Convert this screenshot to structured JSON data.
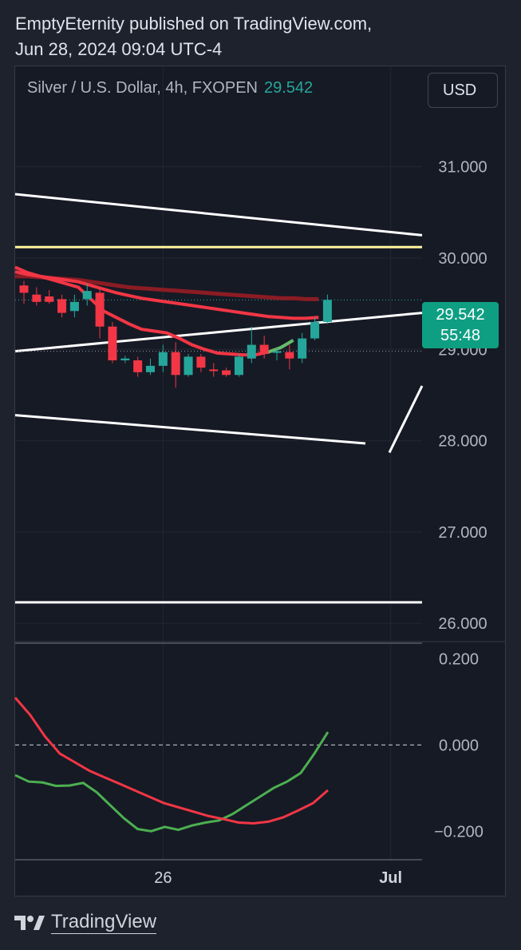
{
  "header": {
    "line1": "EmptyEternity published on TradingView.com,",
    "line2": "Jun 28, 2024 09:04 UTC-4"
  },
  "legend": {
    "symbol": "Silver / U.S. Dollar, 4h, FXOPEN",
    "last_price": "29.542"
  },
  "currency_button": "USD",
  "price_tag": {
    "price": "29.542",
    "countdown": "55:48"
  },
  "footer": {
    "brand": "TradingView"
  },
  "colors": {
    "bull": "#26a69a",
    "bear": "#f23645",
    "ma_fast": "#f23645",
    "ma_slow": "#8b1c24",
    "osc_green": "#4caf50",
    "osc_red": "#f23645",
    "level_yellow": "#fff59d",
    "trendline": "#ffffff"
  },
  "chart_data": [
    {
      "type": "candlestick",
      "title": "Silver / U.S. Dollar, 4h, FXOPEN",
      "ylim": [
        25.8,
        32.1
      ],
      "y_ticks": [
        "31.000",
        "30.000",
        "29.000",
        "28.000",
        "27.000",
        "26.000"
      ],
      "y_tick_values": [
        31,
        30,
        29,
        28,
        27,
        26
      ],
      "x_ticks": [
        "26",
        "Jul"
      ],
      "x_tick_index": [
        11,
        29
      ],
      "candles": [
        {
          "o": 29.7,
          "h": 29.75,
          "l": 29.5,
          "c": 29.62
        },
        {
          "o": 29.6,
          "h": 29.68,
          "l": 29.48,
          "c": 29.52
        },
        {
          "o": 29.58,
          "h": 29.65,
          "l": 29.5,
          "c": 29.52
        },
        {
          "o": 29.55,
          "h": 29.6,
          "l": 29.35,
          "c": 29.4
        },
        {
          "o": 29.42,
          "h": 29.6,
          "l": 29.35,
          "c": 29.52
        },
        {
          "o": 29.55,
          "h": 29.72,
          "l": 29.48,
          "c": 29.64
        },
        {
          "o": 29.62,
          "h": 29.68,
          "l": 29.12,
          "c": 29.25
        },
        {
          "o": 29.25,
          "h": 29.3,
          "l": 28.85,
          "c": 28.88
        },
        {
          "o": 28.88,
          "h": 28.93,
          "l": 28.85,
          "c": 28.9
        },
        {
          "o": 28.88,
          "h": 28.92,
          "l": 28.7,
          "c": 28.75
        },
        {
          "o": 28.75,
          "h": 28.9,
          "l": 28.72,
          "c": 28.82
        },
        {
          "o": 28.82,
          "h": 29.05,
          "l": 28.75,
          "c": 28.97
        },
        {
          "o": 28.97,
          "h": 29.08,
          "l": 28.58,
          "c": 28.72
        },
        {
          "o": 28.72,
          "h": 28.95,
          "l": 28.7,
          "c": 28.92
        },
        {
          "o": 28.92,
          "h": 28.95,
          "l": 28.75,
          "c": 28.8
        },
        {
          "o": 28.78,
          "h": 28.85,
          "l": 28.7,
          "c": 28.77
        },
        {
          "o": 28.77,
          "h": 28.8,
          "l": 28.7,
          "c": 28.72
        },
        {
          "o": 28.72,
          "h": 28.95,
          "l": 28.7,
          "c": 28.92
        },
        {
          "o": 28.9,
          "h": 29.25,
          "l": 28.85,
          "c": 29.05
        },
        {
          "o": 29.05,
          "h": 29.15,
          "l": 28.9,
          "c": 28.95
        },
        {
          "o": 28.97,
          "h": 29.02,
          "l": 28.88,
          "c": 28.98
        },
        {
          "o": 28.97,
          "h": 29.05,
          "l": 28.78,
          "c": 28.9
        },
        {
          "o": 28.9,
          "h": 29.18,
          "l": 28.85,
          "c": 29.12
        },
        {
          "o": 29.12,
          "h": 29.35,
          "l": 29.1,
          "c": 29.3
        },
        {
          "o": 29.3,
          "h": 29.6,
          "l": 29.28,
          "c": 29.542
        }
      ],
      "series": [
        {
          "type": "line",
          "values": [
            29.9,
            29.84,
            29.8,
            29.76,
            29.72,
            29.68,
            29.55,
            29.42,
            29.35,
            29.28,
            29.22,
            29.2,
            29.18,
            29.12,
            29.05,
            29.0,
            28.96,
            28.95,
            28.94,
            28.94,
            28.97,
            29.02,
            29.1
          ]
        },
        {
          "type": "line",
          "values": [
            29.85,
            29.82,
            29.8,
            29.78,
            29.76,
            29.74,
            29.7,
            29.66,
            29.62,
            29.59,
            29.56,
            29.54,
            29.52,
            29.5,
            29.48,
            29.46,
            29.44,
            29.42,
            29.4,
            29.38,
            29.36,
            29.35,
            29.34,
            29.34,
            29.35
          ]
        },
        {
          "type": "line",
          "values": [
            29.8,
            29.8,
            29.79,
            29.78,
            29.77,
            29.76,
            29.74,
            29.72,
            29.7,
            29.68,
            29.67,
            29.66,
            29.65,
            29.64,
            29.63,
            29.62,
            29.61,
            29.6,
            29.59,
            29.58,
            29.57,
            29.56,
            29.56,
            29.55,
            29.55
          ]
        }
      ],
      "levels": [
        30.12
      ],
      "current_price": 29.542
    },
    {
      "type": "line",
      "ylim": [
        -0.27,
        0.24
      ],
      "y_ticks": [
        "0.200",
        "0.000",
        "−0.200"
      ],
      "y_tick_values": [
        0.2,
        0.0,
        -0.2
      ],
      "series": [
        {
          "values": [
            -0.07,
            -0.085,
            -0.087,
            -0.095,
            -0.094,
            -0.088,
            -0.11,
            -0.14,
            -0.17,
            -0.195,
            -0.2,
            -0.19,
            -0.197,
            -0.187,
            -0.18,
            -0.175,
            -0.16,
            -0.14,
            -0.12,
            -0.1,
            -0.085,
            -0.065,
            -0.02,
            0.03
          ]
        },
        {
          "values": [
            0.11,
            0.07,
            0.02,
            -0.02,
            -0.04,
            -0.06,
            -0.075,
            -0.09,
            -0.105,
            -0.12,
            -0.135,
            -0.145,
            -0.155,
            -0.165,
            -0.172,
            -0.18,
            -0.182,
            -0.178,
            -0.168,
            -0.152,
            -0.135,
            -0.105
          ]
        }
      ]
    }
  ]
}
